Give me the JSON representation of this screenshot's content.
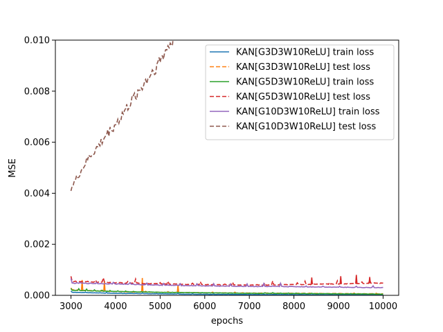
{
  "chart_data": {
    "type": "line",
    "title": "",
    "xlabel": "epochs",
    "ylabel": "MSE",
    "xlim": [
      2650,
      10350
    ],
    "ylim": [
      0,
      0.01
    ],
    "xticks": [
      3000,
      4000,
      5000,
      6000,
      7000,
      8000,
      9000,
      10000
    ],
    "xtick_labels": [
      "3000",
      "4000",
      "5000",
      "6000",
      "7000",
      "8000",
      "9000",
      "10000"
    ],
    "yticks": [
      0,
      0.002,
      0.004,
      0.006,
      0.008,
      0.01
    ],
    "ytick_labels": [
      "0.000",
      "0.002",
      "0.004",
      "0.006",
      "0.008",
      "0.010"
    ],
    "grid": false,
    "legend_position": "top-right",
    "series": [
      {
        "name": "KAN[G3D3W10ReLU] train loss",
        "color": "#1f77b4",
        "dash": "solid",
        "x": [
          3000,
          4000,
          5000,
          6000,
          7000,
          8000,
          9000,
          10000
        ],
        "y": [
          0.00012,
          8e-05,
          6e-05,
          4e-05,
          3e-05,
          3e-05,
          2e-05,
          2e-05
        ]
      },
      {
        "name": "KAN[G3D3W10ReLU] test loss",
        "color": "#ff7f0e",
        "dash": "dashed",
        "x": [
          3000,
          3500,
          4000,
          4500,
          5000,
          6000,
          7000,
          8000,
          9000,
          10000
        ],
        "y": [
          0.00022,
          0.00018,
          0.00015,
          0.00013,
          0.00012,
          0.0001,
          9e-05,
          8e-05,
          7e-05,
          6e-05
        ],
        "spikes": [
          {
            "x": 3250,
            "y": 0.0006
          },
          {
            "x": 3750,
            "y": 0.00055
          },
          {
            "x": 4600,
            "y": 0.00068
          },
          {
            "x": 5400,
            "y": 0.0004
          }
        ]
      },
      {
        "name": "KAN[G5D3W10ReLU] train loss",
        "color": "#2ca02c",
        "dash": "solid",
        "x": [
          3000,
          4000,
          5000,
          6000,
          7000,
          8000,
          9000,
          10000
        ],
        "y": [
          0.0002,
          0.00015,
          0.00012,
          0.0001,
          8e-05,
          7e-05,
          6e-05,
          5e-05
        ]
      },
      {
        "name": "KAN[G5D3W10ReLU] test loss",
        "color": "#d62728",
        "dash": "dashed",
        "x": [
          3000,
          4000,
          5000,
          6000,
          7000,
          8000,
          9000,
          10000
        ],
        "y": [
          0.00055,
          0.0005,
          0.00045,
          0.00042,
          0.0004,
          0.00042,
          0.00045,
          0.00048
        ],
        "spikes": [
          {
            "x": 8400,
            "y": 0.0007
          },
          {
            "x": 9050,
            "y": 0.00075
          },
          {
            "x": 9400,
            "y": 0.0008
          },
          {
            "x": 9700,
            "y": 0.00072
          }
        ]
      },
      {
        "name": "KAN[G10D3W10ReLU] train loss",
        "color": "#9467bd",
        "dash": "solid",
        "x": [
          3000,
          4000,
          5000,
          6000,
          7000,
          8000,
          9000,
          10000
        ],
        "y": [
          0.00048,
          0.00045,
          0.0004,
          0.00037,
          0.00035,
          0.00034,
          0.00032,
          0.0003
        ]
      },
      {
        "name": "KAN[G10D3W10ReLU] test loss",
        "color": "#8c564b",
        "dash": "dashed",
        "x": [
          3000,
          3200,
          3400,
          3600,
          3800,
          4000,
          4200,
          4400,
          4600,
          4800,
          5000,
          5200,
          5300
        ],
        "y": [
          0.0042,
          0.0048,
          0.0054,
          0.0058,
          0.0063,
          0.0067,
          0.0072,
          0.0077,
          0.0082,
          0.0087,
          0.0092,
          0.0098,
          0.01
        ]
      }
    ]
  }
}
